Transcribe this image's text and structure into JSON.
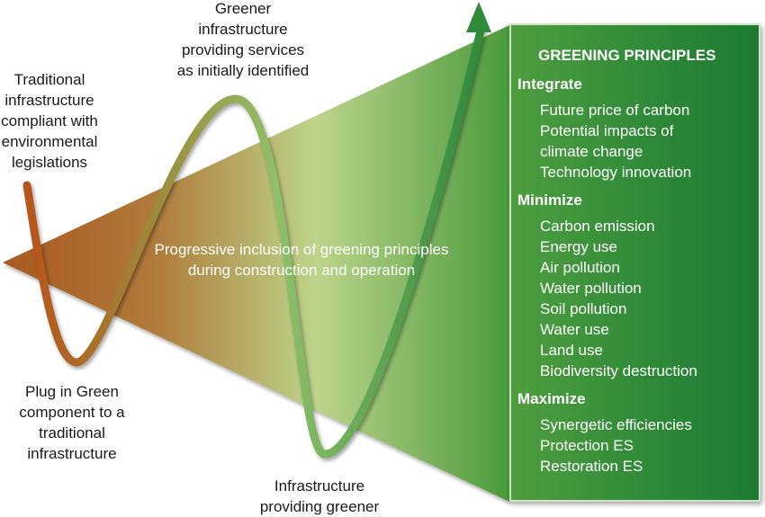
{
  "labels": {
    "traditional": [
      "Traditional",
      "infrastructure",
      "compliant with",
      "environmental",
      "legislations"
    ],
    "greener_identified": [
      "Greener",
      "infrastructure",
      "providing services",
      "as initially identified"
    ],
    "plug_in": [
      "Plug in Green",
      "component to a",
      "traditional",
      "infrastructure"
    ],
    "infra_bottom": [
      "Infrastructure",
      "providing greener"
    ]
  },
  "center_text": [
    "Progressive inclusion of greening principles",
    "during construction and operation"
  ],
  "principles": {
    "title": "GREENING PRINCIPLES",
    "integrate": {
      "title": "Integrate",
      "items": [
        "Future price of carbon",
        "Potential impacts of",
        "climate change",
        "Technology innovation"
      ]
    },
    "minimize": {
      "title": "Minimize",
      "items": [
        "Carbon emission",
        "Energy use",
        "Air pollution",
        "Water pollution",
        "Soil pollution",
        "Water use",
        "Land use",
        "Biodiversity destruction"
      ]
    },
    "maximize": {
      "title": "Maximize",
      "items": [
        "Synergetic efficiencies",
        "Protection ES",
        "Restoration ES"
      ]
    }
  },
  "colors": {
    "triangle_left": "#a9581f",
    "triangle_mid": "#b3cf83",
    "triangle_right": "#4a9a3c",
    "curve_start": "#b8541c",
    "curve_end": "#2f8a3a",
    "panel": "#2f8a38"
  }
}
